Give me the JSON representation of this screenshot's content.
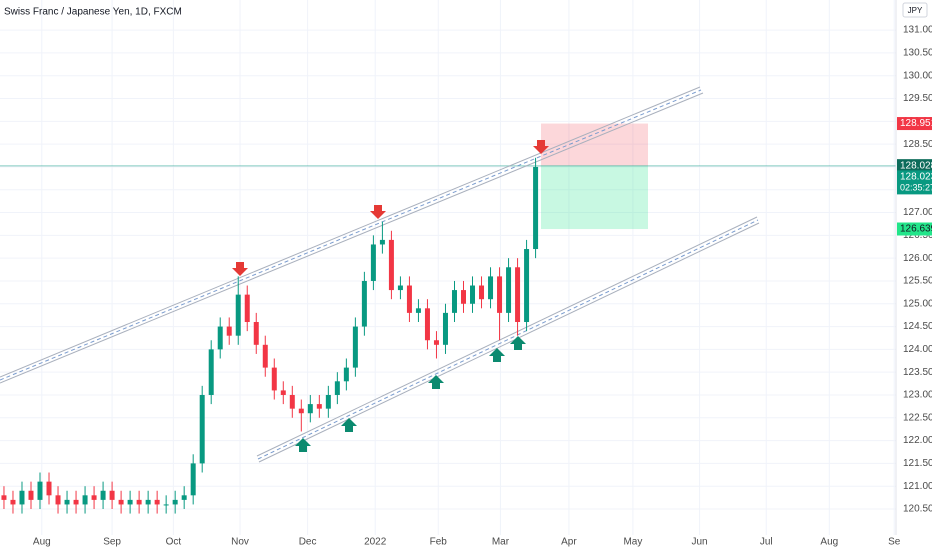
{
  "chart_data": {
    "type": "candlestick",
    "title": "Swiss Franc / Japanese Yen, 1D, FXCM",
    "currency": "JPY",
    "up_color": "#089981",
    "down_color": "#f23645",
    "candles": {
      "open": [
        120.8,
        120.7,
        120.6,
        120.9,
        120.7,
        121.1,
        120.8,
        120.6,
        120.7,
        120.6,
        120.8,
        120.7,
        120.9,
        120.7,
        120.6,
        120.7,
        120.6,
        120.7,
        120.6,
        120.6,
        120.7,
        120.8,
        121.5,
        123.0,
        124.0,
        124.5,
        124.3,
        125.2,
        124.6,
        124.1,
        123.6,
        123.1,
        123.0,
        122.7,
        122.6,
        122.8,
        122.7,
        123.0,
        123.3,
        123.6,
        124.5,
        125.5,
        126.3,
        126.4,
        125.3,
        125.4,
        124.8,
        124.9,
        124.2,
        124.1,
        124.8,
        125.3,
        125.0,
        125.4,
        125.1,
        125.6,
        124.8,
        125.8,
        124.6,
        126.2
      ],
      "high": [
        121.0,
        120.9,
        121.1,
        121.1,
        121.3,
        121.3,
        121.0,
        120.9,
        120.9,
        121.0,
        121.0,
        121.1,
        121.1,
        120.9,
        120.9,
        120.9,
        120.9,
        120.9,
        120.8,
        120.9,
        121.0,
        121.7,
        123.2,
        124.2,
        124.7,
        124.7,
        125.6,
        125.4,
        124.8,
        124.3,
        123.8,
        123.3,
        123.2,
        122.9,
        123.0,
        123.0,
        123.2,
        123.5,
        123.8,
        124.7,
        125.7,
        126.5,
        126.8,
        126.6,
        125.6,
        125.6,
        125.1,
        125.1,
        124.4,
        125.0,
        125.5,
        125.5,
        125.6,
        125.6,
        125.8,
        125.8,
        126.0,
        126.0,
        126.4,
        128.2
      ],
      "low": [
        120.5,
        120.4,
        120.4,
        120.5,
        120.5,
        120.6,
        120.4,
        120.4,
        120.4,
        120.4,
        120.5,
        120.5,
        120.5,
        120.4,
        120.4,
        120.4,
        120.4,
        120.4,
        120.4,
        120.4,
        120.5,
        120.6,
        121.3,
        122.8,
        123.8,
        124.1,
        124.1,
        124.4,
        123.9,
        123.4,
        122.9,
        122.8,
        122.5,
        122.2,
        122.4,
        122.5,
        122.5,
        122.8,
        123.1,
        123.4,
        124.3,
        125.3,
        126.1,
        125.1,
        125.1,
        124.6,
        124.6,
        124.0,
        123.8,
        123.9,
        124.6,
        124.8,
        124.8,
        124.9,
        124.9,
        124.2,
        124.6,
        124.3,
        124.4,
        126.0
      ],
      "close": [
        120.7,
        120.6,
        120.9,
        120.7,
        121.1,
        120.8,
        120.6,
        120.7,
        120.6,
        120.8,
        120.7,
        120.9,
        120.7,
        120.6,
        120.7,
        120.6,
        120.7,
        120.6,
        120.6,
        120.7,
        120.8,
        121.5,
        123.0,
        124.0,
        124.5,
        124.3,
        125.2,
        124.6,
        124.1,
        123.6,
        123.1,
        123.0,
        122.7,
        122.6,
        122.8,
        122.7,
        123.0,
        123.3,
        123.6,
        124.5,
        125.5,
        126.3,
        126.4,
        125.3,
        125.4,
        124.8,
        124.9,
        124.2,
        124.1,
        124.8,
        125.3,
        125.0,
        125.4,
        125.1,
        125.6,
        124.8,
        125.8,
        124.6,
        126.2,
        128.0
      ]
    },
    "xlim": [
      -0.44,
      99
    ],
    "xticks": [
      {
        "value": 4.2,
        "label": "Aug"
      },
      {
        "value": 12,
        "label": "Sep"
      },
      {
        "value": 18.8,
        "label": "Oct"
      },
      {
        "value": 26.2,
        "label": "Nov"
      },
      {
        "value": 33.7,
        "label": "Dec"
      },
      {
        "value": 41.2,
        "label": "2022"
      },
      {
        "value": 48.2,
        "label": "Feb"
      },
      {
        "value": 55.1,
        "label": "Mar"
      },
      {
        "value": 62.7,
        "label": "Apr"
      },
      {
        "value": 69.8,
        "label": "May"
      },
      {
        "value": 77.2,
        "label": "Jun"
      },
      {
        "value": 84.6,
        "label": "Jul"
      },
      {
        "value": 91.6,
        "label": "Aug"
      },
      {
        "value": 98.8,
        "label": "Se"
      }
    ],
    "ylim": [
      119.93,
      131.66
    ],
    "yticks": [
      {
        "value": 120.5,
        "label": "120.500"
      },
      {
        "value": 121,
        "label": "121.000"
      },
      {
        "value": 121.5,
        "label": "121.500"
      },
      {
        "value": 122,
        "label": "122.000"
      },
      {
        "value": 122.5,
        "label": "122.500"
      },
      {
        "value": 123,
        "label": "123.000"
      },
      {
        "value": 123.5,
        "label": "123.500"
      },
      {
        "value": 124,
        "label": "124.000"
      },
      {
        "value": 124.5,
        "label": "124.500"
      },
      {
        "value": 125,
        "label": "125.000"
      },
      {
        "value": 125.5,
        "label": "125.500"
      },
      {
        "value": 126,
        "label": "126.000"
      },
      {
        "value": 126.5,
        "label": "126.500"
      },
      {
        "value": 127,
        "label": "127.000"
      },
      {
        "value": 127.5,
        "label": "127.500"
      },
      {
        "value": 128,
        "label": "128.000"
      },
      {
        "value": 128.5,
        "label": "128.500"
      },
      {
        "value": 129,
        "label": "129.000"
      },
      {
        "value": 129.5,
        "label": "129.500"
      },
      {
        "value": 130,
        "label": "130.000"
      },
      {
        "value": 130.5,
        "label": "130.500"
      },
      {
        "value": 131,
        "label": "131.000"
      }
    ],
    "grid": true,
    "position": {
      "stop": 128.951,
      "entry": 128.028,
      "target": 126.639
    },
    "stop_color": "#f23645",
    "entry_color": "#0c6b5a",
    "target_color": "#22e58a",
    "last_price": 128.023,
    "last_price_color": "#089981",
    "countdown": "02:35:27"
  }
}
